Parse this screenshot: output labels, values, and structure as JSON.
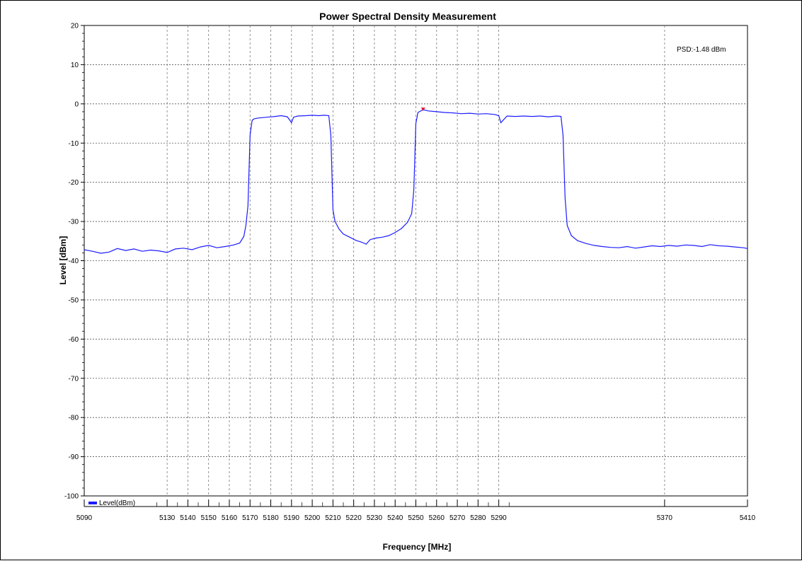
{
  "chart_data": {
    "type": "line",
    "title": "Power Spectral Density Measurement",
    "xlabel": "Frequency [MHz]",
    "ylabel": "Level [dBm]",
    "xlim": [
      5090,
      5410
    ],
    "ylim": [
      -100,
      20
    ],
    "x_ticks": [
      5090,
      5130,
      5140,
      5150,
      5160,
      5170,
      5180,
      5190,
      5200,
      5210,
      5220,
      5230,
      5240,
      5250,
      5260,
      5270,
      5280,
      5290,
      5370,
      5410
    ],
    "y_ticks": [
      20,
      10,
      0,
      -10,
      -20,
      -30,
      -40,
      -50,
      -60,
      -70,
      -80,
      -90,
      -100
    ],
    "vertical_grid": [
      5130,
      5140,
      5150,
      5160,
      5170,
      5180,
      5190,
      5200,
      5210,
      5220,
      5230,
      5240,
      5250,
      5260,
      5270,
      5280,
      5290,
      5370
    ],
    "grid": true,
    "legend_position": "bottom-left",
    "annotation": "PSD:-1.48 dBm",
    "marker": {
      "x": 5253.5,
      "y": -1.48,
      "color": "#e0203a"
    },
    "series": [
      {
        "name": "Level(dBm)",
        "color": "#1c1cff",
        "x": [
          5090,
          5094,
          5098,
          5102,
          5106,
          5110,
          5114,
          5118,
          5122,
          5126,
          5130,
          5134,
          5138,
          5142,
          5146,
          5150,
          5154,
          5158,
          5162,
          5165,
          5167,
          5168,
          5169,
          5170,
          5171,
          5172,
          5174,
          5178,
          5182,
          5185,
          5188,
          5190,
          5191,
          5193,
          5197,
          5200,
          5203,
          5206,
          5208,
          5209,
          5210,
          5211,
          5213,
          5215,
          5218,
          5221,
          5224,
          5226,
          5228,
          5231,
          5234,
          5237,
          5240,
          5243,
          5246,
          5248,
          5249,
          5250,
          5251,
          5252,
          5253.5,
          5256,
          5260,
          5264,
          5268,
          5272,
          5276,
          5280,
          5284,
          5288,
          5290,
          5291,
          5294,
          5298,
          5302,
          5306,
          5310,
          5314,
          5318,
          5320,
          5321,
          5322,
          5323,
          5325,
          5328,
          5332,
          5336,
          5340,
          5344,
          5348,
          5352,
          5356,
          5360,
          5364,
          5368,
          5372,
          5376,
          5380,
          5384,
          5388,
          5392,
          5396,
          5400,
          5404,
          5408,
          5410
        ],
        "y": [
          -37.2,
          -37.6,
          -38.1,
          -37.8,
          -36.9,
          -37.4,
          -37.0,
          -37.6,
          -37.3,
          -37.5,
          -37.9,
          -37.0,
          -36.8,
          -37.2,
          -36.5,
          -36.1,
          -36.7,
          -36.4,
          -36.0,
          -35.5,
          -33.8,
          -31.0,
          -26.0,
          -8.0,
          -4.2,
          -3.8,
          -3.6,
          -3.4,
          -3.2,
          -3.0,
          -3.3,
          -4.8,
          -3.4,
          -3.1,
          -3.0,
          -2.9,
          -3.0,
          -2.9,
          -3.0,
          -8.0,
          -27.0,
          -30.0,
          -32.0,
          -33.2,
          -34.0,
          -34.8,
          -35.3,
          -35.8,
          -34.6,
          -34.2,
          -34.0,
          -33.6,
          -32.8,
          -31.8,
          -30.2,
          -28.0,
          -22.0,
          -5.0,
          -2.2,
          -1.9,
          -1.48,
          -1.8,
          -2.0,
          -2.2,
          -2.3,
          -2.5,
          -2.4,
          -2.6,
          -2.5,
          -2.7,
          -3.0,
          -4.8,
          -3.1,
          -3.2,
          -3.1,
          -3.2,
          -3.1,
          -3.3,
          -3.1,
          -3.2,
          -8.0,
          -24.0,
          -31.0,
          -33.6,
          -34.9,
          -35.6,
          -36.1,
          -36.4,
          -36.6,
          -36.7,
          -36.4,
          -36.8,
          -36.5,
          -36.2,
          -36.4,
          -36.1,
          -36.3,
          -36.0,
          -36.1,
          -36.4,
          -35.9,
          -36.2,
          -36.3,
          -36.5,
          -36.7,
          -36.9
        ]
      }
    ]
  }
}
